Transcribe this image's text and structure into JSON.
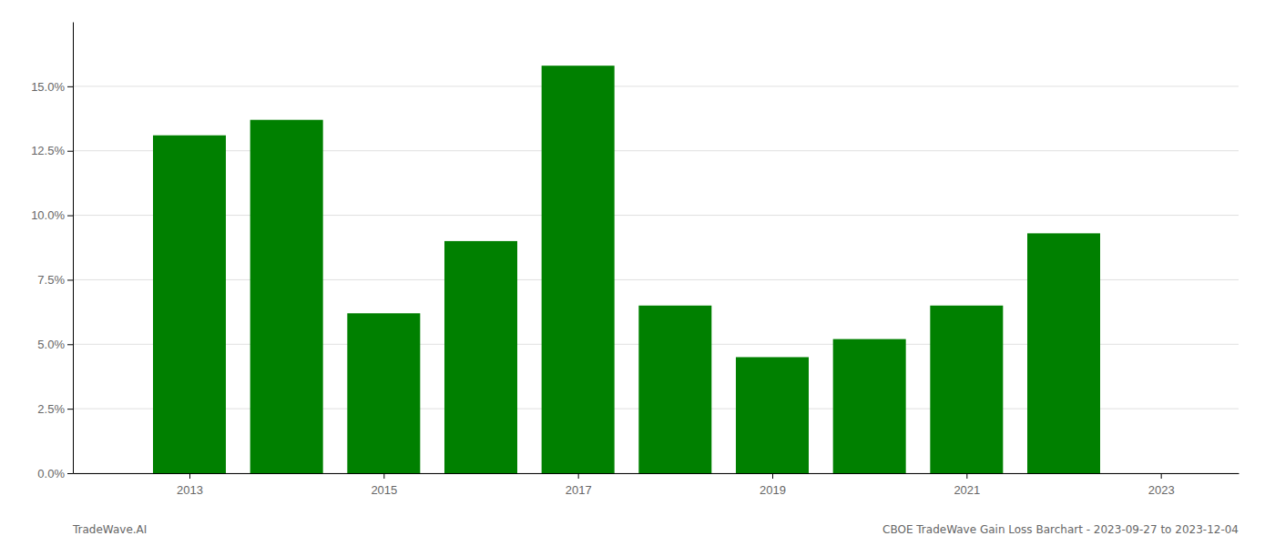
{
  "chart_data": {
    "type": "bar",
    "x": [
      2013,
      2014,
      2015,
      2016,
      2017,
      2018,
      2019,
      2020,
      2021,
      2022
    ],
    "values": [
      0.131,
      0.137,
      0.062,
      0.09,
      0.158,
      0.065,
      0.045,
      0.052,
      0.065,
      0.093
    ],
    "color": "#008000",
    "xlim": [
      2011.8,
      2023.8
    ],
    "xticks": [
      2013,
      2015,
      2017,
      2019,
      2021,
      2023
    ],
    "ylim": [
      0,
      0.175
    ],
    "yticks": [
      {
        "value": 0.0,
        "label": "0.0%"
      },
      {
        "value": 0.025,
        "label": "2.5%"
      },
      {
        "value": 0.05,
        "label": "5.0%"
      },
      {
        "value": 0.075,
        "label": "7.5%"
      },
      {
        "value": 0.1,
        "label": "10.0%"
      },
      {
        "value": 0.125,
        "label": "12.5%"
      },
      {
        "value": 0.15,
        "label": "15.0%"
      }
    ],
    "grid": true,
    "annotations": [
      "TradeWave.AI",
      "CBOE TradeWave Gain Loss Barchart - 2023-09-27 to 2023-12-04"
    ]
  }
}
